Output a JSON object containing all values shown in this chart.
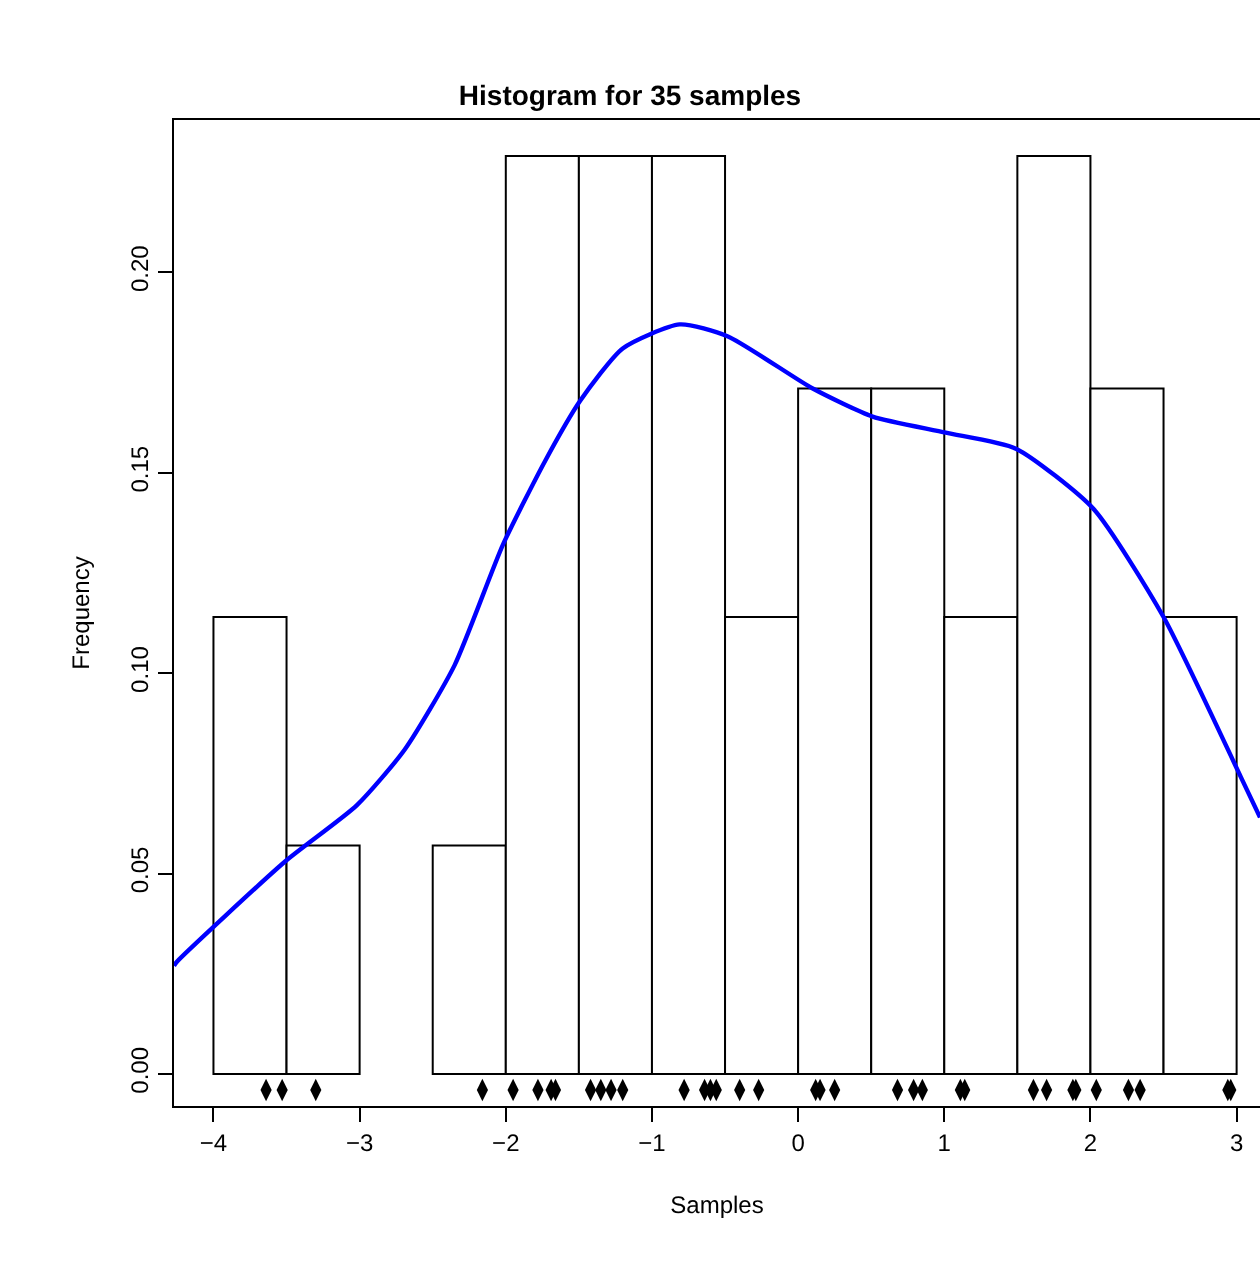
{
  "chart_data": {
    "type": "histogram",
    "title": "Histogram for 35 samples",
    "xlabel": "Samples",
    "ylabel": "Frequency",
    "bins": [
      -4,
      -3.5,
      -3,
      -2.5,
      -2,
      -1.5,
      -1,
      -0.5,
      0,
      0.5,
      1,
      1.5,
      2,
      2.5,
      3
    ],
    "values": [
      0.114,
      0.057,
      0,
      0.057,
      0.229,
      0.229,
      0.229,
      0.114,
      0.171,
      0.171,
      0.114,
      0.229,
      0.171,
      0.114
    ],
    "color": "#ffffff",
    "series": [
      {
        "type": "line",
        "color": "#0000ff",
        "x": [
          -4.27,
          -4.25,
          -3.51,
          -3.02,
          -2.69,
          -2.35,
          -2.02,
          -1.73,
          -1.49,
          -1.2,
          -0.81,
          -0.48,
          0.1,
          0.51,
          1.01,
          1.49,
          2.02,
          2.5,
          3.03,
          3.16
        ],
        "values": [
          0.027,
          0.028,
          0.053,
          0.067,
          0.081,
          0.102,
          0.132,
          0.153,
          0.168,
          0.181,
          0.187,
          0.184,
          0.171,
          0.164,
          0.16,
          0.156,
          0.141,
          0.114,
          0.074,
          0.064
        ]
      },
      {
        "type": "scatter",
        "color": "#000000",
        "x": [
          -3.64,
          -3.53,
          -3.3,
          -2.16,
          -1.95,
          -1.78,
          -1.69,
          -1.66,
          -1.42,
          -1.35,
          -1.28,
          -1.2,
          -0.78,
          -0.64,
          -0.6,
          -0.56,
          -0.4,
          -0.27,
          0.12,
          0.15,
          0.25,
          0.68,
          0.79,
          0.85,
          1.11,
          1.14,
          1.61,
          1.7,
          1.88,
          1.9,
          2.04,
          2.26,
          2.34,
          2.94,
          2.96
        ],
        "values": [
          -0.004,
          -0.004,
          -0.004,
          -0.004,
          -0.004,
          -0.004,
          -0.004,
          -0.004,
          -0.004,
          -0.004,
          -0.004,
          -0.004,
          -0.004,
          -0.004,
          -0.004,
          -0.004,
          -0.004,
          -0.004,
          -0.004,
          -0.004,
          -0.004,
          -0.004,
          -0.004,
          -0.004,
          -0.004,
          -0.004,
          -0.004,
          -0.004,
          -0.004,
          -0.004,
          -0.004,
          -0.004,
          -0.004,
          -0.004,
          -0.004
        ]
      }
    ],
    "xlim": [
      -4.27,
      3.16
    ],
    "ylim": [
      -0.008,
      0.238
    ],
    "xticks": [
      -4,
      -3,
      -2,
      -1,
      0,
      1,
      2,
      3
    ],
    "yticks": [
      {
        "value": 0,
        "label": "0.00"
      },
      {
        "value": 0.05,
        "label": "0.05"
      },
      {
        "value": 0.1,
        "label": "0.10"
      },
      {
        "value": 0.15,
        "label": "0.15"
      },
      {
        "value": 0.2,
        "label": "0.20"
      }
    ],
    "grid": false
  }
}
